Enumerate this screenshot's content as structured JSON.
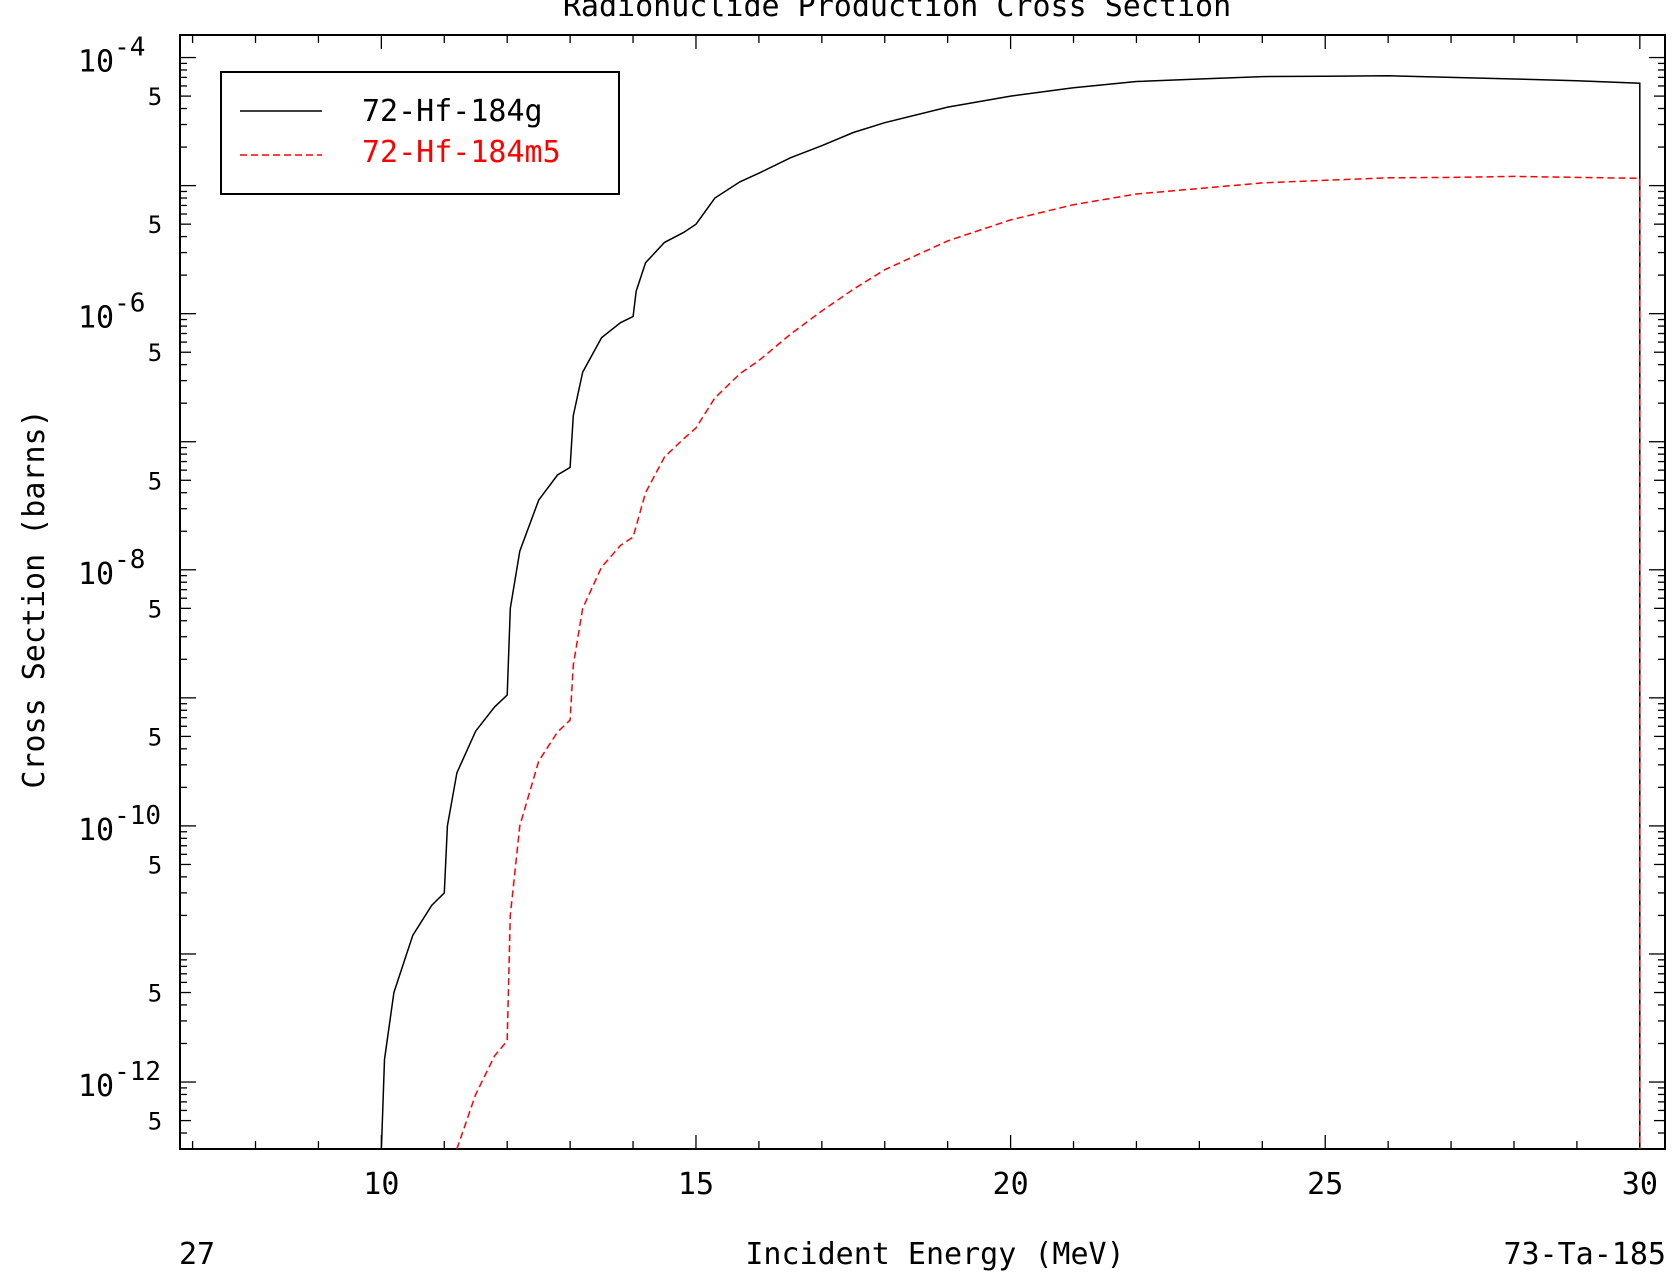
{
  "chart_data": {
    "type": "line",
    "title": "Radionuclide Production Cross Section",
    "xlabel": "Incident Energy (MeV)",
    "ylabel": "Cross Section (barns)",
    "footer_left": "27",
    "footer_right": "73-Ta-185",
    "xlim": [
      6.8,
      30.4
    ],
    "ylim": [
      3e-13,
      0.00015
    ],
    "yscale": "log",
    "x_ticks": [
      10,
      15,
      20,
      25,
      30
    ],
    "x_tick_labels": [
      "10",
      "15",
      "20",
      "25",
      "30"
    ],
    "y_decades": [
      {
        "base": "10",
        "exp": "-4",
        "value": 0.0001
      },
      {
        "base": "10",
        "exp": "-6",
        "value": 1e-06
      },
      {
        "base": "10",
        "exp": "-8",
        "value": 1e-08
      },
      {
        "base": "10",
        "exp": "-10",
        "value": 1e-10
      },
      {
        "base": "10",
        "exp": "-12",
        "value": 1e-12
      }
    ],
    "y_five_label": "5",
    "y_five_values": [
      5e-05,
      5e-06,
      5e-07,
      5e-08,
      5e-09,
      5e-10,
      5e-11,
      5e-12,
      5e-13
    ],
    "legend_position": "top-left",
    "series": [
      {
        "name": "72-Hf-184g",
        "color": "#000000",
        "dash": "solid",
        "points": [
          [
            10.0,
            3e-13
          ],
          [
            10.05,
            1.5e-12
          ],
          [
            10.2,
            5e-12
          ],
          [
            10.5,
            1.4e-11
          ],
          [
            10.8,
            2.4e-11
          ],
          [
            11.0,
            3e-11
          ],
          [
            11.05,
            1e-10
          ],
          [
            11.2,
            2.6e-10
          ],
          [
            11.5,
            5.5e-10
          ],
          [
            11.8,
            8.5e-10
          ],
          [
            12.0,
            1.05e-09
          ],
          [
            12.05,
            5e-09
          ],
          [
            12.2,
            1.4e-08
          ],
          [
            12.5,
            3.5e-08
          ],
          [
            12.8,
            5.5e-08
          ],
          [
            13.0,
            6.3e-08
          ],
          [
            13.05,
            1.6e-07
          ],
          [
            13.2,
            3.5e-07
          ],
          [
            13.5,
            6.5e-07
          ],
          [
            13.8,
            8.5e-07
          ],
          [
            14.0,
            9.5e-07
          ],
          [
            14.05,
            1.5e-06
          ],
          [
            14.2,
            2.5e-06
          ],
          [
            14.5,
            3.6e-06
          ],
          [
            14.8,
            4.3e-06
          ],
          [
            15.0,
            5e-06
          ],
          [
            15.3,
            8e-06
          ],
          [
            15.7,
            1.07e-05
          ],
          [
            16.0,
            1.25e-05
          ],
          [
            16.5,
            1.65e-05
          ],
          [
            17.0,
            2.05e-05
          ],
          [
            17.5,
            2.6e-05
          ],
          [
            18.0,
            3.1e-05
          ],
          [
            19.0,
            4.1e-05
          ],
          [
            20.0,
            5e-05
          ],
          [
            21.0,
            5.8e-05
          ],
          [
            22.0,
            6.5e-05
          ],
          [
            23.0,
            6.8e-05
          ],
          [
            24.0,
            7.1e-05
          ],
          [
            25.0,
            7.15e-05
          ],
          [
            26.0,
            7.2e-05
          ],
          [
            27.0,
            7e-05
          ],
          [
            28.0,
            6.8e-05
          ],
          [
            29.0,
            6.6e-05
          ],
          [
            30.0,
            6.3e-05
          ],
          [
            30.0,
            3e-13
          ]
        ]
      },
      {
        "name": "72-Hf-184m5",
        "color": "#ff0000",
        "dash": "dashed",
        "points": [
          [
            11.2,
            3e-13
          ],
          [
            11.5,
            8e-13
          ],
          [
            11.8,
            1.6e-12
          ],
          [
            12.0,
            2.1e-12
          ],
          [
            12.05,
            2e-11
          ],
          [
            12.2,
            1e-10
          ],
          [
            12.5,
            3.2e-10
          ],
          [
            12.8,
            5.4e-10
          ],
          [
            13.0,
            6.7e-10
          ],
          [
            13.05,
            1.8e-09
          ],
          [
            13.2,
            5e-09
          ],
          [
            13.5,
            1.05e-08
          ],
          [
            13.8,
            1.55e-08
          ],
          [
            14.0,
            1.8e-08
          ],
          [
            14.2,
            4e-08
          ],
          [
            14.5,
            7.6e-08
          ],
          [
            14.8,
            1.05e-07
          ],
          [
            15.0,
            1.28e-07
          ],
          [
            15.3,
            2.2e-07
          ],
          [
            15.7,
            3.4e-07
          ],
          [
            16.0,
            4.3e-07
          ],
          [
            16.5,
            6.9e-07
          ],
          [
            17.0,
            1.05e-06
          ],
          [
            17.5,
            1.55e-06
          ],
          [
            18.0,
            2.2e-06
          ],
          [
            19.0,
            3.7e-06
          ],
          [
            20.0,
            5.4e-06
          ],
          [
            21.0,
            7.1e-06
          ],
          [
            22.0,
            8.6e-06
          ],
          [
            23.0,
            9.5e-06
          ],
          [
            24.0,
            1.05e-05
          ],
          [
            25.0,
            1.1e-05
          ],
          [
            26.0,
            1.15e-05
          ],
          [
            27.0,
            1.16e-05
          ],
          [
            28.0,
            1.18e-05
          ],
          [
            29.0,
            1.16e-05
          ],
          [
            30.0,
            1.14e-05
          ],
          [
            30.0,
            3e-13
          ]
        ]
      }
    ]
  }
}
